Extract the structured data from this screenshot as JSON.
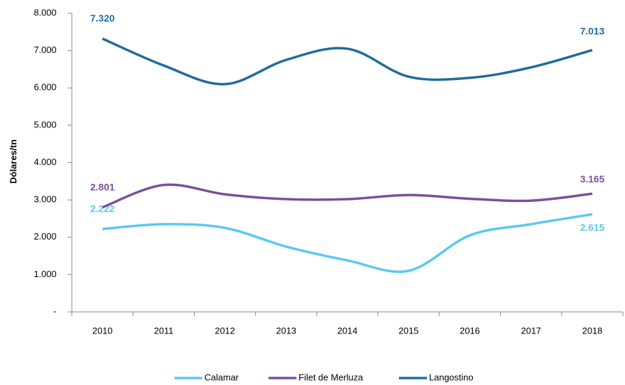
{
  "chart_data": {
    "type": "line",
    "y_label": "Dólares/tn",
    "categories": [
      "2010",
      "2011",
      "2012",
      "2013",
      "2014",
      "2015",
      "2016",
      "2017",
      "2018"
    ],
    "ylim": [
      0,
      8000
    ],
    "yticks": [
      {
        "value": 0,
        "label": "-"
      },
      {
        "value": 1000,
        "label": "1.000"
      },
      {
        "value": 2000,
        "label": "2.000"
      },
      {
        "value": 3000,
        "label": "3.000"
      },
      {
        "value": 4000,
        "label": "4.000"
      },
      {
        "value": 5000,
        "label": "5.000"
      },
      {
        "value": 6000,
        "label": "6.000"
      },
      {
        "value": 7000,
        "label": "7.000"
      },
      {
        "value": 8000,
        "label": "8.000"
      }
    ],
    "smooth": true,
    "legend": "bottom",
    "series": [
      {
        "name": "Calamar",
        "color": "#5bc8f0",
        "values": [
          2222,
          2350,
          2250,
          1750,
          1380,
          1100,
          2050,
          2350,
          2615
        ],
        "value_labels": [
          "2.222",
          null,
          null,
          null,
          null,
          null,
          null,
          null,
          "2.615"
        ]
      },
      {
        "name": "Filet de Merluza",
        "color": "#7b4f9d",
        "values": [
          2801,
          3400,
          3150,
          3020,
          3020,
          3130,
          3030,
          2980,
          3165
        ],
        "value_labels": [
          "2.801",
          null,
          null,
          null,
          null,
          null,
          null,
          null,
          "3.165"
        ]
      },
      {
        "name": "Langostino",
        "color": "#1f6c9c",
        "values": [
          7320,
          6600,
          6100,
          6750,
          7050,
          6300,
          6270,
          6550,
          7013
        ],
        "value_labels": [
          "7.320",
          null,
          null,
          null,
          null,
          null,
          null,
          null,
          "7.013"
        ]
      }
    ]
  }
}
